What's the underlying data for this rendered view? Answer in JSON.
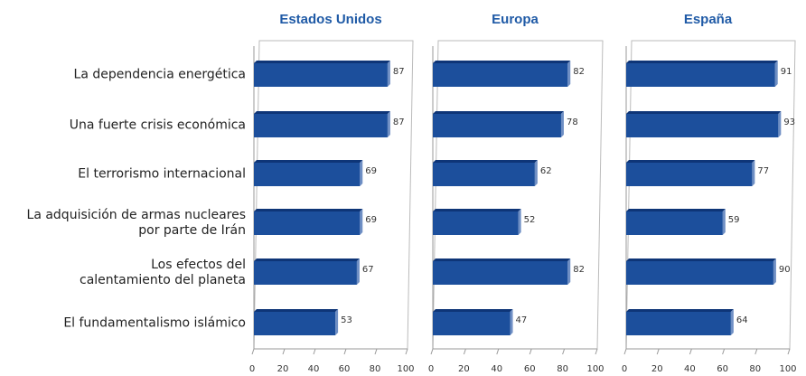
{
  "chart_data": [
    {
      "type": "bar",
      "title": "Estados Unidos",
      "categories": [
        "La dependencia energética",
        "Una fuerte crisis económica",
        "El terrorismo internacional",
        "La adquisición de armas nucleares\npor parte de Irán",
        "Los efectos del\ncalentamiento del planeta",
        "El fundamentalismo islámico"
      ],
      "values": [
        87,
        87,
        69,
        69,
        67,
        53
      ],
      "color": "#1c4f9c",
      "xlim": [
        0,
        100
      ],
      "xticks": [
        0,
        20,
        40,
        60,
        80,
        100
      ]
    },
    {
      "type": "bar",
      "title": "Europa",
      "values": [
        82,
        78,
        62,
        52,
        82,
        47
      ],
      "color": "#1c4f9c",
      "xlim": [
        0,
        100
      ],
      "xticks": [
        0,
        20,
        40,
        60,
        80,
        100
      ]
    },
    {
      "type": "bar",
      "title": "España",
      "values": [
        91,
        93,
        77,
        59,
        90,
        64
      ],
      "color": "#1c4f9c",
      "xlim": [
        0,
        100
      ],
      "xticks": [
        0,
        20,
        40,
        60,
        80,
        100
      ]
    }
  ]
}
